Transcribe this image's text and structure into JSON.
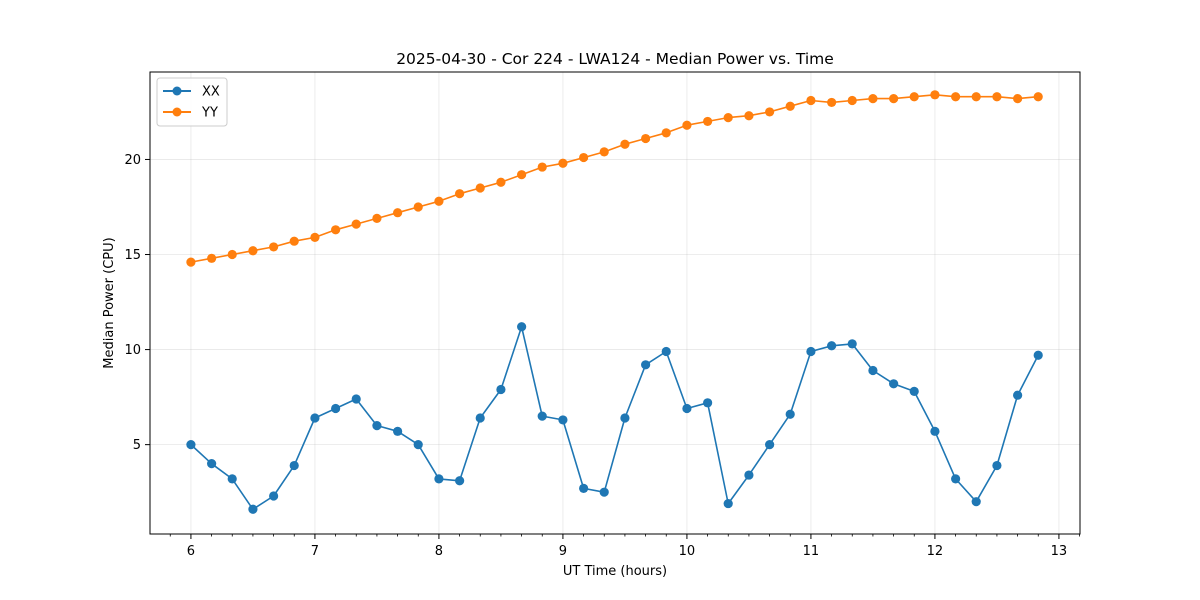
{
  "chart_data": {
    "type": "line",
    "title": "2025-04-30 - Cor 224 - LWA124 - Median Power vs. Time",
    "xlabel": "UT Time (hours)",
    "ylabel": "Median Power (CPU)",
    "xlim": [
      5.67,
      13.17
    ],
    "ylim": [
      0.3,
      24.6
    ],
    "xticks": [
      6,
      7,
      8,
      9,
      10,
      11,
      12,
      13
    ],
    "yticks": [
      5,
      10,
      15,
      20
    ],
    "grid": true,
    "legend_position": "top-left",
    "x": [
      6.0,
      6.167,
      6.333,
      6.5,
      6.667,
      6.833,
      7.0,
      7.167,
      7.333,
      7.5,
      7.667,
      7.833,
      8.0,
      8.167,
      8.333,
      8.5,
      8.667,
      8.833,
      9.0,
      9.167,
      9.333,
      9.5,
      9.667,
      9.833,
      10.0,
      10.167,
      10.333,
      10.5,
      10.667,
      10.833,
      11.0,
      11.167,
      11.333,
      11.5,
      11.667,
      11.833,
      12.0,
      12.167,
      12.333,
      12.5,
      12.667,
      12.833
    ],
    "series": [
      {
        "name": "XX",
        "color": "#1f77b4",
        "values": [
          5.0,
          4.0,
          3.2,
          1.6,
          2.3,
          3.9,
          6.4,
          6.9,
          7.4,
          6.0,
          5.7,
          5.0,
          3.2,
          3.1,
          6.4,
          7.9,
          11.2,
          6.5,
          6.3,
          2.7,
          2.5,
          6.4,
          9.2,
          9.9,
          6.9,
          7.2,
          1.9,
          3.4,
          5.0,
          6.6,
          9.9,
          10.2,
          10.3,
          8.9,
          8.2,
          7.8,
          5.7,
          3.2,
          2.0,
          3.9,
          7.6,
          9.7
        ]
      },
      {
        "name": "YY",
        "color": "#ff7f0e",
        "values": [
          14.6,
          14.8,
          15.0,
          15.2,
          15.4,
          15.7,
          15.9,
          16.3,
          16.6,
          16.9,
          17.2,
          17.5,
          17.8,
          18.2,
          18.5,
          18.8,
          19.2,
          19.6,
          19.8,
          20.1,
          20.4,
          20.8,
          21.1,
          21.4,
          21.8,
          22.0,
          22.2,
          22.3,
          22.5,
          22.8,
          23.1,
          23.0,
          23.1,
          23.2,
          23.2,
          23.3,
          23.4,
          23.3,
          23.3,
          23.3,
          23.2,
          23.3
        ]
      }
    ]
  }
}
